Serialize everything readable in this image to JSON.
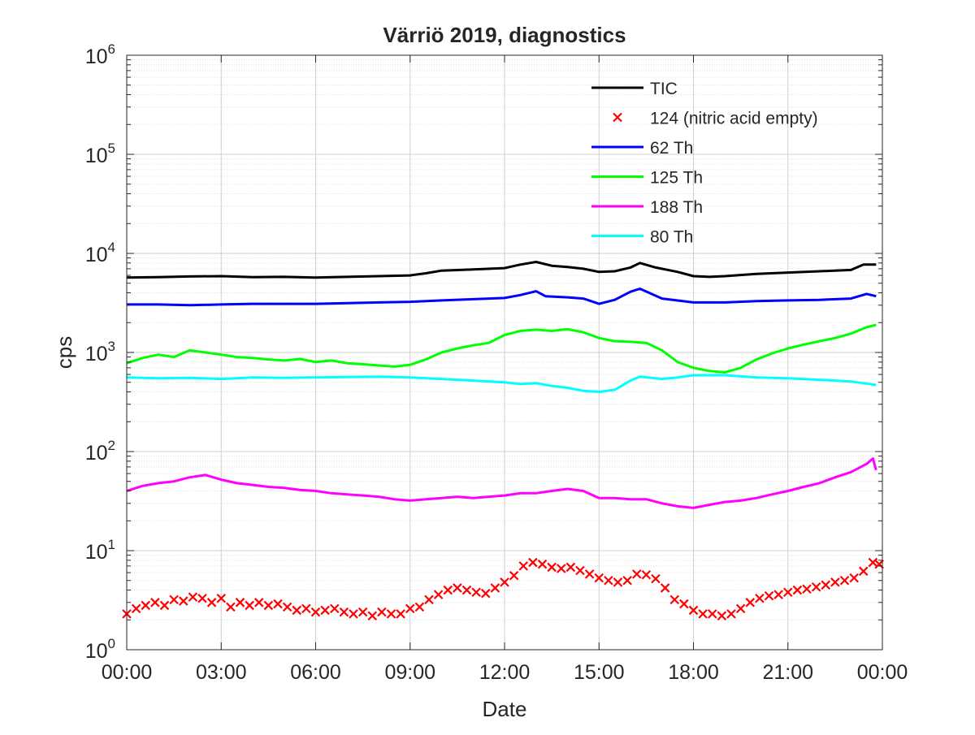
{
  "chart_data": {
    "type": "line",
    "title": "Värriö 2019, diagnostics",
    "xlabel": "Date",
    "ylabel": "cps",
    "yscale": "log",
    "ylim": [
      1,
      1000000
    ],
    "xlim_hours": [
      0,
      24
    ],
    "x_ticks": [
      "00:00",
      "03:00",
      "06:00",
      "09:00",
      "12:00",
      "15:00",
      "18:00",
      "21:00",
      "00:00"
    ],
    "y_ticks": [
      {
        "base": "10",
        "exp": "0"
      },
      {
        "base": "10",
        "exp": "1"
      },
      {
        "base": "10",
        "exp": "2"
      },
      {
        "base": "10",
        "exp": "3"
      },
      {
        "base": "10",
        "exp": "4"
      },
      {
        "base": "10",
        "exp": "5"
      },
      {
        "base": "10",
        "exp": "6"
      }
    ],
    "grid": true,
    "legend_position": "top-right",
    "series": [
      {
        "name": "TIC",
        "style": "line",
        "color": "#000000",
        "points": [
          [
            0.0,
            5700
          ],
          [
            1.0,
            5750
          ],
          [
            2.0,
            5850
          ],
          [
            3.0,
            5900
          ],
          [
            4.0,
            5750
          ],
          [
            5.0,
            5800
          ],
          [
            6.0,
            5700
          ],
          [
            7.0,
            5800
          ],
          [
            8.0,
            5900
          ],
          [
            9.0,
            6000
          ],
          [
            9.5,
            6300
          ],
          [
            10.0,
            6700
          ],
          [
            11.0,
            6900
          ],
          [
            12.0,
            7100
          ],
          [
            12.5,
            7700
          ],
          [
            13.0,
            8200
          ],
          [
            13.5,
            7500
          ],
          [
            14.0,
            7300
          ],
          [
            14.5,
            7000
          ],
          [
            15.0,
            6500
          ],
          [
            15.5,
            6600
          ],
          [
            16.0,
            7200
          ],
          [
            16.3,
            8000
          ],
          [
            16.8,
            7200
          ],
          [
            17.5,
            6500
          ],
          [
            18.0,
            5900
          ],
          [
            18.5,
            5800
          ],
          [
            19.0,
            5900
          ],
          [
            20.0,
            6200
          ],
          [
            21.0,
            6400
          ],
          [
            22.0,
            6600
          ],
          [
            23.0,
            6800
          ],
          [
            23.4,
            7700
          ],
          [
            23.8,
            7700
          ]
        ]
      },
      {
        "name": "124 (nitric acid empty)",
        "style": "marker",
        "color": "#ff0000",
        "points": [
          [
            0.0,
            2.3
          ],
          [
            0.3,
            2.6
          ],
          [
            0.6,
            2.8
          ],
          [
            0.9,
            3.0
          ],
          [
            1.2,
            2.8
          ],
          [
            1.5,
            3.2
          ],
          [
            1.8,
            3.1
          ],
          [
            2.1,
            3.4
          ],
          [
            2.4,
            3.3
          ],
          [
            2.7,
            3.0
          ],
          [
            3.0,
            3.3
          ],
          [
            3.3,
            2.7
          ],
          [
            3.6,
            3.0
          ],
          [
            3.9,
            2.8
          ],
          [
            4.2,
            3.0
          ],
          [
            4.5,
            2.8
          ],
          [
            4.8,
            2.9
          ],
          [
            5.1,
            2.7
          ],
          [
            5.4,
            2.5
          ],
          [
            5.7,
            2.6
          ],
          [
            6.0,
            2.4
          ],
          [
            6.3,
            2.5
          ],
          [
            6.6,
            2.6
          ],
          [
            6.9,
            2.4
          ],
          [
            7.2,
            2.3
          ],
          [
            7.5,
            2.4
          ],
          [
            7.8,
            2.2
          ],
          [
            8.1,
            2.4
          ],
          [
            8.4,
            2.3
          ],
          [
            8.7,
            2.3
          ],
          [
            9.0,
            2.6
          ],
          [
            9.3,
            2.7
          ],
          [
            9.6,
            3.2
          ],
          [
            9.9,
            3.6
          ],
          [
            10.2,
            4.0
          ],
          [
            10.5,
            4.2
          ],
          [
            10.8,
            4.0
          ],
          [
            11.1,
            3.8
          ],
          [
            11.4,
            3.7
          ],
          [
            11.7,
            4.2
          ],
          [
            12.0,
            4.8
          ],
          [
            12.3,
            5.6
          ],
          [
            12.6,
            7.0
          ],
          [
            12.9,
            7.6
          ],
          [
            13.2,
            7.3
          ],
          [
            13.5,
            6.8
          ],
          [
            13.8,
            6.6
          ],
          [
            14.1,
            6.8
          ],
          [
            14.4,
            6.3
          ],
          [
            14.7,
            5.8
          ],
          [
            15.0,
            5.3
          ],
          [
            15.3,
            5.0
          ],
          [
            15.6,
            4.8
          ],
          [
            15.9,
            5.0
          ],
          [
            16.2,
            5.8
          ],
          [
            16.5,
            5.7
          ],
          [
            16.8,
            5.2
          ],
          [
            17.1,
            4.2
          ],
          [
            17.4,
            3.2
          ],
          [
            17.7,
            2.9
          ],
          [
            18.0,
            2.5
          ],
          [
            18.3,
            2.3
          ],
          [
            18.6,
            2.3
          ],
          [
            18.9,
            2.2
          ],
          [
            19.2,
            2.3
          ],
          [
            19.5,
            2.6
          ],
          [
            19.8,
            3.0
          ],
          [
            20.1,
            3.3
          ],
          [
            20.4,
            3.5
          ],
          [
            20.7,
            3.6
          ],
          [
            21.0,
            3.8
          ],
          [
            21.3,
            4.0
          ],
          [
            21.6,
            4.1
          ],
          [
            21.9,
            4.3
          ],
          [
            22.2,
            4.5
          ],
          [
            22.5,
            4.8
          ],
          [
            22.8,
            5.0
          ],
          [
            23.1,
            5.3
          ],
          [
            23.4,
            6.2
          ],
          [
            23.7,
            7.6
          ],
          [
            23.9,
            7.3
          ]
        ]
      },
      {
        "name": "62 Th",
        "style": "line",
        "color": "#0000ff",
        "points": [
          [
            0.0,
            3050
          ],
          [
            1.0,
            3050
          ],
          [
            2.0,
            3000
          ],
          [
            3.0,
            3050
          ],
          [
            4.0,
            3100
          ],
          [
            5.0,
            3100
          ],
          [
            6.0,
            3100
          ],
          [
            7.0,
            3150
          ],
          [
            8.0,
            3200
          ],
          [
            9.0,
            3250
          ],
          [
            10.0,
            3350
          ],
          [
            11.0,
            3450
          ],
          [
            12.0,
            3550
          ],
          [
            12.5,
            3800
          ],
          [
            13.0,
            4150
          ],
          [
            13.3,
            3700
          ],
          [
            14.0,
            3600
          ],
          [
            14.5,
            3500
          ],
          [
            15.0,
            3100
          ],
          [
            15.5,
            3400
          ],
          [
            16.0,
            4100
          ],
          [
            16.3,
            4400
          ],
          [
            17.0,
            3500
          ],
          [
            18.0,
            3200
          ],
          [
            19.0,
            3200
          ],
          [
            20.0,
            3300
          ],
          [
            21.0,
            3350
          ],
          [
            22.0,
            3400
          ],
          [
            23.0,
            3500
          ],
          [
            23.5,
            3900
          ],
          [
            23.8,
            3700
          ]
        ]
      },
      {
        "name": "125 Th",
        "style": "line",
        "color": "#00ff00",
        "points": [
          [
            0.0,
            780
          ],
          [
            0.5,
            880
          ],
          [
            1.0,
            950
          ],
          [
            1.5,
            900
          ],
          [
            2.0,
            1050
          ],
          [
            2.5,
            1000
          ],
          [
            3.0,
            950
          ],
          [
            3.5,
            900
          ],
          [
            4.0,
            880
          ],
          [
            4.5,
            850
          ],
          [
            5.0,
            830
          ],
          [
            5.5,
            860
          ],
          [
            6.0,
            800
          ],
          [
            6.5,
            830
          ],
          [
            7.0,
            780
          ],
          [
            7.5,
            760
          ],
          [
            8.0,
            740
          ],
          [
            8.5,
            720
          ],
          [
            9.0,
            750
          ],
          [
            9.5,
            850
          ],
          [
            10.0,
            1000
          ],
          [
            10.5,
            1100
          ],
          [
            11.0,
            1180
          ],
          [
            11.5,
            1250
          ],
          [
            12.0,
            1500
          ],
          [
            12.5,
            1650
          ],
          [
            13.0,
            1700
          ],
          [
            13.5,
            1650
          ],
          [
            14.0,
            1720
          ],
          [
            14.5,
            1600
          ],
          [
            15.0,
            1400
          ],
          [
            15.5,
            1300
          ],
          [
            16.0,
            1280
          ],
          [
            16.5,
            1250
          ],
          [
            17.0,
            1050
          ],
          [
            17.5,
            800
          ],
          [
            18.0,
            700
          ],
          [
            18.5,
            650
          ],
          [
            19.0,
            630
          ],
          [
            19.5,
            700
          ],
          [
            20.0,
            850
          ],
          [
            20.5,
            980
          ],
          [
            21.0,
            1100
          ],
          [
            21.5,
            1200
          ],
          [
            22.0,
            1300
          ],
          [
            22.5,
            1400
          ],
          [
            23.0,
            1550
          ],
          [
            23.5,
            1800
          ],
          [
            23.8,
            1900
          ]
        ]
      },
      {
        "name": "188 Th",
        "style": "line",
        "color": "#ff00ff",
        "points": [
          [
            0.0,
            40
          ],
          [
            0.5,
            45
          ],
          [
            1.0,
            48
          ],
          [
            1.5,
            50
          ],
          [
            2.0,
            55
          ],
          [
            2.5,
            58
          ],
          [
            3.0,
            52
          ],
          [
            3.5,
            48
          ],
          [
            4.0,
            46
          ],
          [
            4.5,
            44
          ],
          [
            5.0,
            43
          ],
          [
            5.5,
            41
          ],
          [
            6.0,
            40
          ],
          [
            6.5,
            38
          ],
          [
            7.0,
            37
          ],
          [
            7.5,
            36
          ],
          [
            8.0,
            35
          ],
          [
            8.5,
            33
          ],
          [
            9.0,
            32
          ],
          [
            9.5,
            33
          ],
          [
            10.0,
            34
          ],
          [
            10.5,
            35
          ],
          [
            11.0,
            34
          ],
          [
            11.5,
            35
          ],
          [
            12.0,
            36
          ],
          [
            12.5,
            38
          ],
          [
            13.0,
            38
          ],
          [
            13.5,
            40
          ],
          [
            14.0,
            42
          ],
          [
            14.5,
            40
          ],
          [
            15.0,
            34
          ],
          [
            15.5,
            34
          ],
          [
            16.0,
            33
          ],
          [
            16.5,
            33
          ],
          [
            17.0,
            30
          ],
          [
            17.5,
            28
          ],
          [
            18.0,
            27
          ],
          [
            18.5,
            29
          ],
          [
            19.0,
            31
          ],
          [
            19.5,
            32
          ],
          [
            20.0,
            34
          ],
          [
            20.5,
            37
          ],
          [
            21.0,
            40
          ],
          [
            21.5,
            44
          ],
          [
            22.0,
            48
          ],
          [
            22.5,
            55
          ],
          [
            23.0,
            62
          ],
          [
            23.5,
            75
          ],
          [
            23.7,
            85
          ],
          [
            23.8,
            65
          ]
        ]
      },
      {
        "name": "80 Th",
        "style": "line",
        "color": "#00ffff",
        "points": [
          [
            0.0,
            560
          ],
          [
            1.0,
            550
          ],
          [
            2.0,
            555
          ],
          [
            3.0,
            540
          ],
          [
            4.0,
            560
          ],
          [
            5.0,
            555
          ],
          [
            6.0,
            560
          ],
          [
            7.0,
            565
          ],
          [
            8.0,
            570
          ],
          [
            9.0,
            560
          ],
          [
            10.0,
            540
          ],
          [
            11.0,
            520
          ],
          [
            12.0,
            500
          ],
          [
            12.5,
            480
          ],
          [
            13.0,
            490
          ],
          [
            13.5,
            460
          ],
          [
            14.0,
            440
          ],
          [
            14.5,
            410
          ],
          [
            15.0,
            400
          ],
          [
            15.5,
            420
          ],
          [
            16.0,
            520
          ],
          [
            16.3,
            570
          ],
          [
            17.0,
            540
          ],
          [
            17.5,
            560
          ],
          [
            18.0,
            590
          ],
          [
            19.0,
            590
          ],
          [
            20.0,
            560
          ],
          [
            21.0,
            550
          ],
          [
            22.0,
            530
          ],
          [
            23.0,
            510
          ],
          [
            23.8,
            470
          ]
        ]
      }
    ]
  }
}
